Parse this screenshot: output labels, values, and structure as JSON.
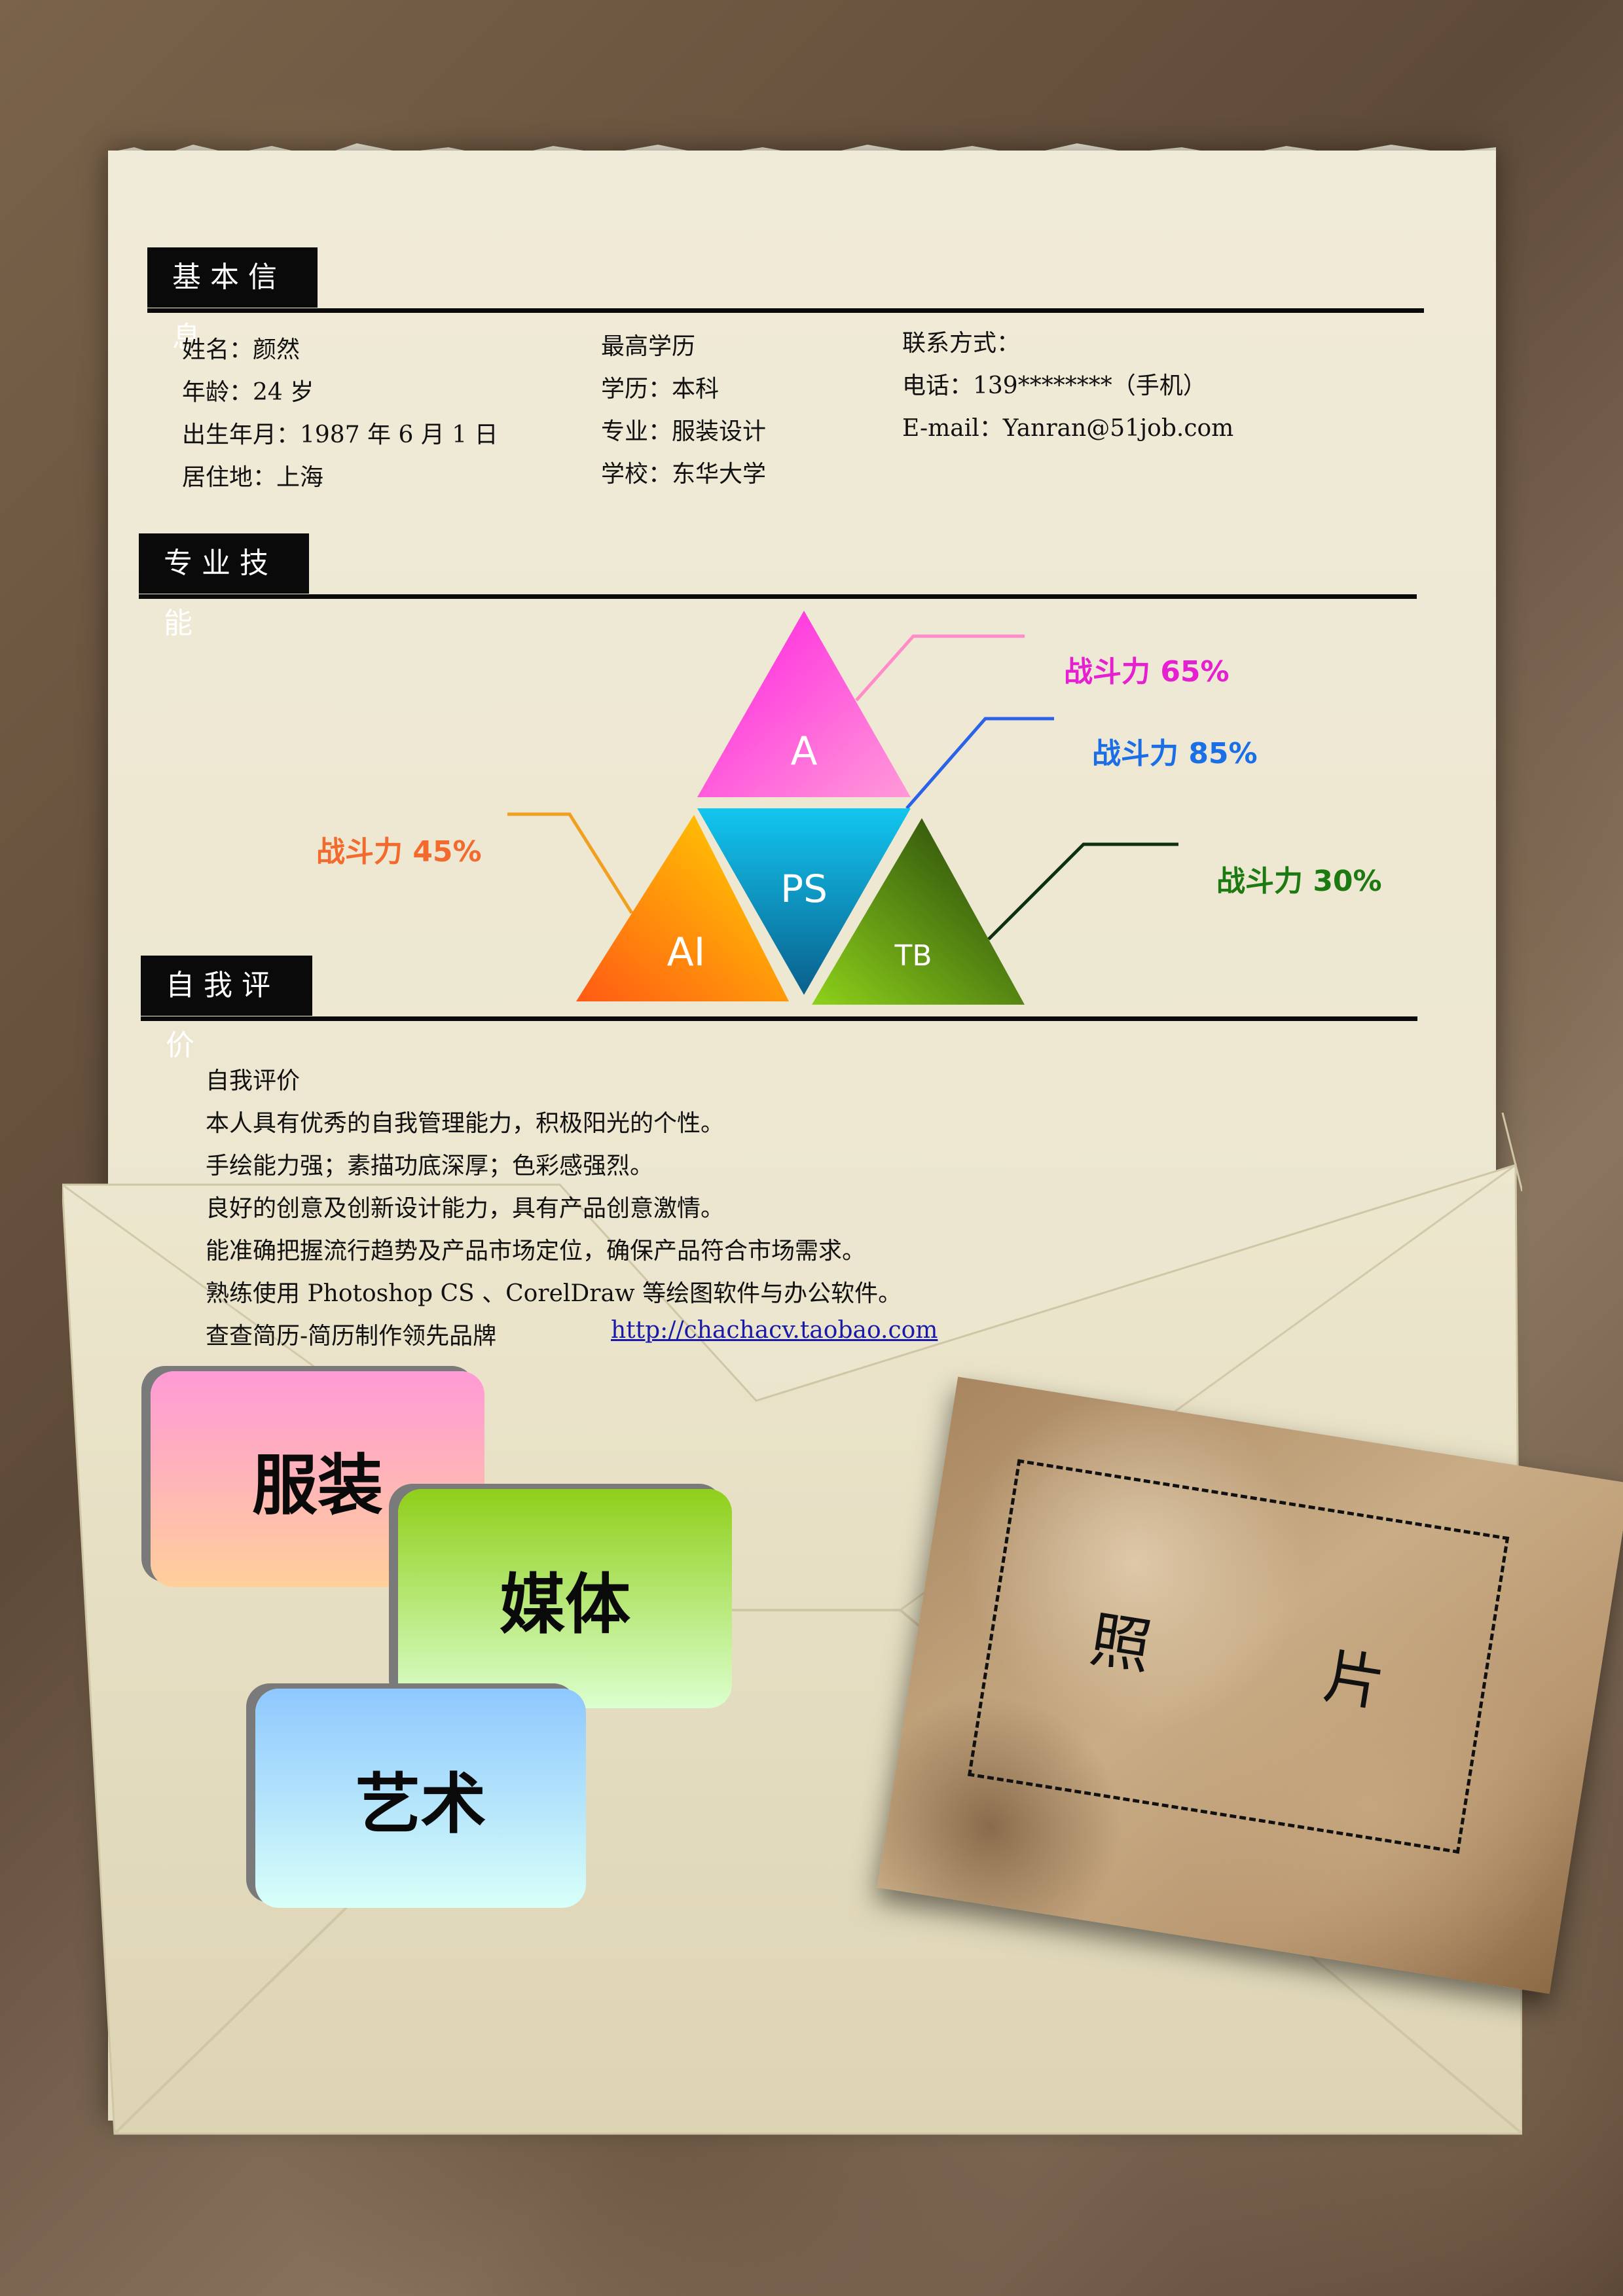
{
  "sections": {
    "basic": "基本信息",
    "skills": "专业技能",
    "self": "自我评价"
  },
  "basic": {
    "col1": [
      "姓名：颜然",
      "年龄：24 岁",
      "出生年月：1987 年 6 月 1 日",
      "居住地：上海"
    ],
    "col2": [
      "最高学历",
      "学历：本科",
      "专业：服装设计",
      "学校：东华大学"
    ],
    "col3": [
      "联系方式：",
      "电话：139********（手机）",
      "E-mail：Yanran@51job.com"
    ]
  },
  "skills": {
    "items": [
      {
        "name": "A",
        "label": "战斗力 65%",
        "value": 65,
        "color": "#e61fd0"
      },
      {
        "name": "PS",
        "label": "战斗力 85%",
        "value": 85,
        "color": "#1a6fe6"
      },
      {
        "name": "AI",
        "label": "战斗力 45%",
        "value": 45,
        "color": "#f26a2e"
      },
      {
        "name": "TB",
        "label": "战斗力 30%",
        "value": 30,
        "color": "#1d7a12"
      }
    ]
  },
  "self": {
    "lines": [
      "自我评价",
      "本人具有优秀的自我管理能力，积极阳光的个性。",
      "手绘能力强；素描功底深厚；色彩感强烈。",
      "良好的创意及创新设计能力，具有产品创意激情。",
      "能准确把握流行趋势及产品市场定位，确保产品符合市场需求。",
      "熟练使用 Photoshop CS 、CorelDraw 等绘图软件与办公软件。"
    ],
    "footer_text": "查查简历-简历制作领先品牌",
    "footer_link": "http://chachacv.taobao.com"
  },
  "tags": [
    "服装",
    "媒体",
    "艺术"
  ],
  "photo": "照  片"
}
